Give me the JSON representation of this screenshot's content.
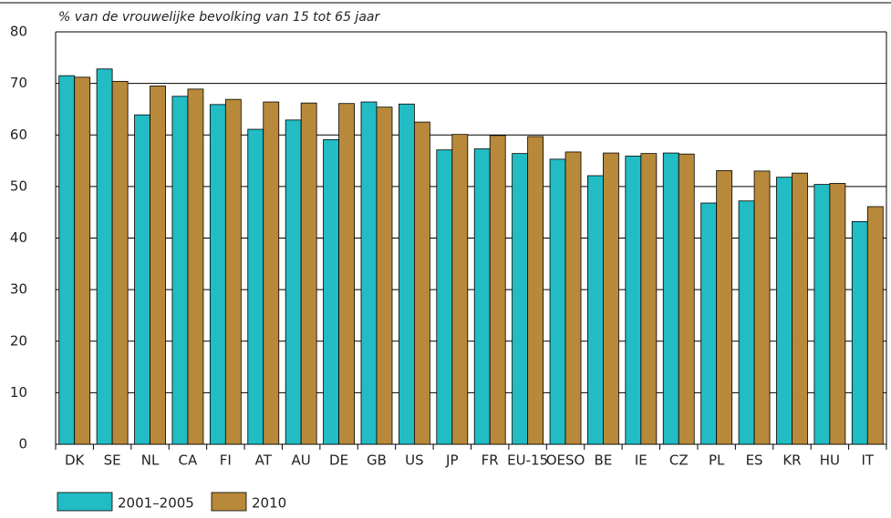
{
  "chart_data": {
    "type": "bar",
    "title": "% van de vrouwelijke bevolking van 15 tot 65 jaar",
    "categories": [
      "DK",
      "SE",
      "NL",
      "CA",
      "FI",
      "AT",
      "AU",
      "DE",
      "GB",
      "US",
      "JP",
      "FR",
      "EU-15",
      "OESO",
      "BE",
      "IE",
      "CZ",
      "PL",
      "ES",
      "KR",
      "HU",
      "IT"
    ],
    "series": [
      {
        "name": "2001–2005",
        "color": "#21bcc4",
        "values": [
          71.5,
          72.8,
          63.9,
          67.5,
          65.9,
          61.1,
          62.9,
          59.1,
          66.4,
          66.0,
          57.1,
          57.3,
          56.4,
          55.3,
          52.1,
          55.9,
          56.5,
          46.8,
          47.2,
          51.8,
          50.4,
          43.2
        ]
      },
      {
        "name": "2010",
        "color": "#b8893a",
        "values": [
          71.2,
          70.4,
          69.5,
          68.9,
          66.9,
          66.4,
          66.2,
          66.1,
          65.4,
          62.5,
          60.1,
          59.9,
          59.7,
          56.7,
          56.5,
          56.4,
          56.3,
          53.1,
          53.0,
          52.6,
          50.6,
          46.1
        ]
      }
    ],
    "ylim": [
      0,
      80
    ],
    "yticks": [
      0,
      10,
      20,
      30,
      40,
      50,
      60,
      70,
      80
    ],
    "grid": true
  }
}
